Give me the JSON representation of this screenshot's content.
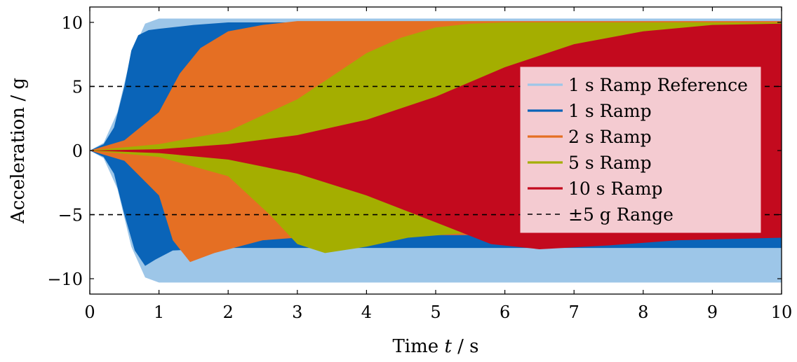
{
  "chart_data": {
    "type": "area",
    "title": "",
    "xlabel_prefix": "Time ",
    "xlabel_var": "t",
    "xlabel_unit": " / s",
    "ylabel": "Acceleration / g",
    "xlim": [
      0,
      10
    ],
    "ylim": [
      -11.2,
      11.2
    ],
    "x_ticks": [
      0,
      1,
      2,
      3,
      4,
      5,
      6,
      7,
      8,
      9,
      10
    ],
    "x_tick_labels": [
      "0",
      "1",
      "2",
      "3",
      "4",
      "5",
      "6",
      "7",
      "8",
      "9",
      "10"
    ],
    "y_ticks": [
      10,
      5,
      0,
      -5,
      -10
    ],
    "y_tick_labels": [
      "10",
      "5",
      "0",
      "−5",
      "−10"
    ],
    "grid": false,
    "legend_position": "center-right",
    "series": [
      {
        "name": "1 s Ramp Reference",
        "color": "#9dc6e8",
        "upper": [
          [
            0,
            0
          ],
          [
            0.2,
            0.6
          ],
          [
            0.4,
            3.0
          ],
          [
            0.6,
            7.5
          ],
          [
            0.8,
            9.9
          ],
          [
            1.0,
            10.3
          ],
          [
            10,
            10.3
          ]
        ],
        "lower": [
          [
            0,
            0
          ],
          [
            0.2,
            -0.6
          ],
          [
            0.4,
            -3.0
          ],
          [
            0.6,
            -7.5
          ],
          [
            0.8,
            -9.9
          ],
          [
            1.0,
            -10.3
          ],
          [
            10,
            -10.3
          ]
        ]
      },
      {
        "name": "1 s Ramp",
        "color": "#0a64b8",
        "upper": [
          [
            0,
            0
          ],
          [
            0.2,
            0.5
          ],
          [
            0.35,
            1.8
          ],
          [
            0.5,
            5.0
          ],
          [
            0.6,
            7.8
          ],
          [
            0.7,
            9.0
          ],
          [
            0.85,
            9.4
          ],
          [
            1.0,
            9.5
          ],
          [
            1.5,
            9.8
          ],
          [
            2,
            10.0
          ],
          [
            10,
            10.0
          ]
        ],
        "lower": [
          [
            0,
            0
          ],
          [
            0.2,
            -0.5
          ],
          [
            0.35,
            -1.8
          ],
          [
            0.5,
            -5.0
          ],
          [
            0.65,
            -7.8
          ],
          [
            0.8,
            -9.0
          ],
          [
            0.95,
            -8.5
          ],
          [
            1.2,
            -7.8
          ],
          [
            2,
            -7.6
          ],
          [
            10,
            -7.6
          ]
        ]
      },
      {
        "name": "2 s Ramp",
        "color": "#e56f23",
        "upper": [
          [
            0,
            0
          ],
          [
            0.5,
            0.8
          ],
          [
            1.0,
            3.0
          ],
          [
            1.3,
            6.0
          ],
          [
            1.6,
            8.0
          ],
          [
            2.0,
            9.3
          ],
          [
            2.5,
            9.8
          ],
          [
            3,
            10.1
          ],
          [
            10,
            10.1
          ]
        ],
        "lower": [
          [
            0,
            0
          ],
          [
            0.5,
            -0.8
          ],
          [
            1.0,
            -3.5
          ],
          [
            1.2,
            -7.0
          ],
          [
            1.45,
            -8.7
          ],
          [
            1.8,
            -8.0
          ],
          [
            2.5,
            -7.0
          ],
          [
            3.5,
            -6.6
          ],
          [
            10,
            -6.6
          ]
        ]
      },
      {
        "name": "5 s Ramp",
        "color": "#a4ae00",
        "upper": [
          [
            0,
            0
          ],
          [
            1,
            0.5
          ],
          [
            2,
            1.5
          ],
          [
            3,
            4.0
          ],
          [
            3.5,
            5.8
          ],
          [
            4,
            7.6
          ],
          [
            4.5,
            8.8
          ],
          [
            5,
            9.6
          ],
          [
            5.5,
            9.9
          ],
          [
            6,
            10.0
          ],
          [
            10,
            10.0
          ]
        ],
        "lower": [
          [
            0,
            0
          ],
          [
            1,
            -0.5
          ],
          [
            2,
            -2.0
          ],
          [
            2.6,
            -5.0
          ],
          [
            3.0,
            -7.3
          ],
          [
            3.4,
            -8.0
          ],
          [
            4,
            -7.5
          ],
          [
            4.6,
            -6.8
          ],
          [
            5.5,
            -6.4
          ],
          [
            10,
            -6.4
          ]
        ]
      },
      {
        "name": "10 s Ramp",
        "color": "#c30a1e",
        "upper": [
          [
            0,
            0
          ],
          [
            1,
            0.1
          ],
          [
            2,
            0.5
          ],
          [
            3,
            1.2
          ],
          [
            4,
            2.4
          ],
          [
            5,
            4.2
          ],
          [
            6,
            6.5
          ],
          [
            7,
            8.3
          ],
          [
            8,
            9.3
          ],
          [
            9,
            9.8
          ],
          [
            10,
            9.9
          ]
        ],
        "lower": [
          [
            0,
            0
          ],
          [
            1,
            -0.2
          ],
          [
            2,
            -0.7
          ],
          [
            3,
            -1.8
          ],
          [
            4,
            -3.5
          ],
          [
            5,
            -5.6
          ],
          [
            5.8,
            -7.3
          ],
          [
            6.5,
            -7.7
          ],
          [
            7.5,
            -7.4
          ],
          [
            8.5,
            -7.0
          ],
          [
            10,
            -6.8
          ]
        ]
      }
    ],
    "reference_lines": {
      "name": "±5 g Range",
      "values": [
        5,
        -5
      ],
      "color": "#000000"
    }
  }
}
